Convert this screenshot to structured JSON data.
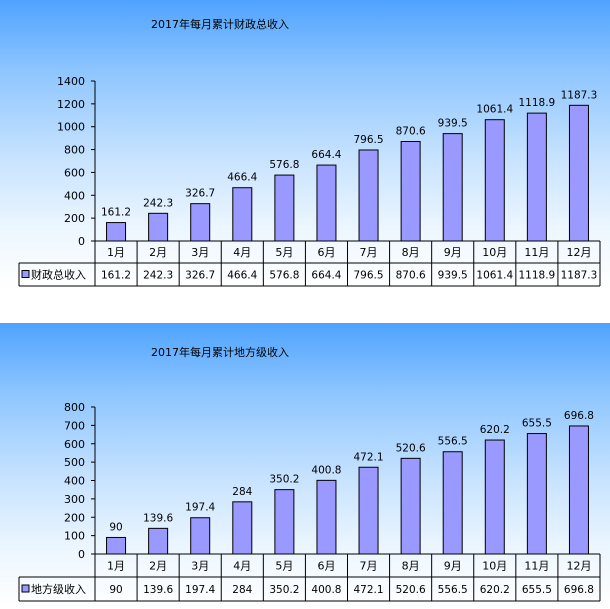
{
  "charts": [
    {
      "title": "2017年每月累计财政总收入",
      "legend_label": "财政总收入",
      "value_labels": [
        "161.2",
        "242.3",
        "326.7",
        "466.4",
        "576.8",
        "664.4",
        "796.5",
        "870.6",
        "939.5",
        "1061.4",
        "1118.9",
        "1187.3"
      ],
      "table_values": [
        "161.2",
        "242.3",
        "326.7",
        "466.4",
        "576.8",
        "664.4",
        "796.5",
        "870.6",
        "939.5",
        "1061.4",
        "1118.9",
        "1187.3"
      ],
      "y_ticks": [
        "0",
        "200",
        "400",
        "600",
        "800",
        "1000",
        "1200",
        "1400"
      ]
    },
    {
      "title": "2017年每月累计地方级收入",
      "legend_label": "地方级收入",
      "value_labels": [
        "90",
        "139.6",
        "197.4",
        "284",
        "350.2",
        "400.8",
        "472.1",
        "520.6",
        "556.5",
        "620.2",
        "655.5",
        "696.8"
      ],
      "table_values": [
        "90",
        "139.6",
        "197.4",
        "284",
        "350.2",
        "400.8",
        "472.1",
        "520.6",
        "556.5",
        "620.2",
        "655.5",
        "696.8"
      ],
      "y_ticks": [
        "0",
        "100",
        "200",
        "300",
        "400",
        "500",
        "600",
        "700",
        "800"
      ]
    }
  ],
  "chart_data": [
    {
      "type": "bar",
      "title": "2017年每月累计财政总收入",
      "categories": [
        "1月",
        "2月",
        "3月",
        "4月",
        "5月",
        "6月",
        "7月",
        "8月",
        "9月",
        "10月",
        "11月",
        "12月"
      ],
      "series": [
        {
          "name": "财政总收入",
          "values": [
            161.2,
            242.3,
            326.7,
            466.4,
            576.8,
            664.4,
            796.5,
            870.6,
            939.5,
            1061.4,
            1118.9,
            1187.3
          ]
        }
      ],
      "ylim": [
        0,
        1400
      ],
      "y_tick_step": 200,
      "legend": "data-table",
      "bar_color": "#9999ff",
      "grid": false
    },
    {
      "type": "bar",
      "title": "2017年每月累计地方级收入",
      "categories": [
        "1月",
        "2月",
        "3月",
        "4月",
        "5月",
        "6月",
        "7月",
        "8月",
        "9月",
        "10月",
        "11月",
        "12月"
      ],
      "series": [
        {
          "name": "地方级收入",
          "values": [
            90,
            139.6,
            197.4,
            284,
            350.2,
            400.8,
            472.1,
            520.6,
            556.5,
            620.2,
            655.5,
            696.8
          ]
        }
      ],
      "ylim": [
        0,
        800
      ],
      "y_tick_step": 100,
      "legend": "data-table",
      "bar_color": "#9999ff",
      "grid": false
    }
  ]
}
